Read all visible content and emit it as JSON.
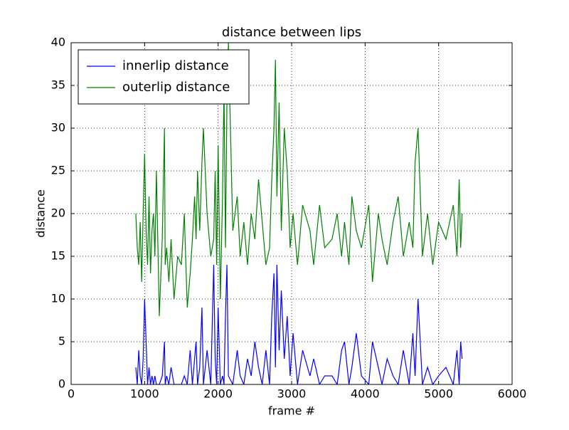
{
  "chart_data": {
    "type": "line",
    "title": "distance between lips",
    "xlabel": "frame #",
    "ylabel": "distance",
    "x": [
      880,
      900,
      920,
      940,
      960,
      980,
      1000,
      1020,
      1040,
      1060,
      1080,
      1100,
      1120,
      1140,
      1160,
      1200,
      1240,
      1270,
      1280,
      1300,
      1330,
      1360,
      1400,
      1450,
      1500,
      1540,
      1580,
      1620,
      1650,
      1680,
      1700,
      1720,
      1750,
      1780,
      1800,
      1850,
      1900,
      1940,
      1960,
      1980,
      2000,
      2030,
      2060,
      2080,
      2100,
      2120,
      2140,
      2200,
      2260,
      2300,
      2350,
      2400,
      2450,
      2500,
      2550,
      2600,
      2650,
      2700,
      2730,
      2760,
      2780,
      2800,
      2830,
      2860,
      2900,
      2940,
      2980,
      3020,
      3080,
      3150,
      3250,
      3300,
      3380,
      3450,
      3550,
      3620,
      3680,
      3720,
      3780,
      3820,
      3880,
      3950,
      4050,
      4100,
      4180,
      4230,
      4300,
      4380,
      4450,
      4520,
      4600,
      4650,
      4680,
      4720,
      4780,
      4850,
      4920,
      5000,
      5100,
      5200,
      5250,
      5280,
      5300,
      5320
    ],
    "series": [
      {
        "name": "innerlip distance",
        "color": "#0000ff",
        "values": [
          2,
          0,
          4,
          1,
          0,
          3,
          10,
          5,
          0,
          2,
          0,
          1,
          0,
          1,
          0,
          0,
          1,
          5,
          0,
          1,
          0,
          2,
          0,
          0,
          0,
          1,
          0,
          4,
          0,
          3,
          5,
          0,
          2,
          9,
          0,
          4,
          0,
          14,
          3,
          0,
          9,
          0,
          1,
          0,
          8,
          14,
          1,
          0,
          4,
          1,
          0,
          3,
          1,
          5,
          2,
          0,
          4,
          0,
          8,
          13,
          2,
          14,
          4,
          11,
          3,
          8,
          1,
          6,
          0,
          4,
          1,
          3,
          0,
          1,
          1,
          0,
          4,
          5,
          0,
          2,
          6,
          1,
          0,
          5,
          2,
          0,
          3,
          1,
          0,
          4,
          0,
          6,
          1,
          10,
          0,
          2,
          0,
          1,
          2,
          0,
          4,
          0,
          5,
          3
        ]
      },
      {
        "name": "outerlip distance",
        "color": "#008000",
        "values": [
          20,
          16,
          14,
          19,
          12,
          20,
          27,
          18,
          14,
          22,
          13,
          18,
          20,
          15,
          25,
          8,
          17,
          30,
          14,
          16,
          12,
          17,
          10,
          15,
          14,
          20,
          9,
          13,
          17,
          22,
          17,
          25,
          18,
          26,
          30,
          20,
          15,
          17,
          25,
          14,
          28,
          10,
          22,
          35,
          16,
          33,
          40,
          18,
          22,
          15,
          19,
          14,
          20,
          17,
          24,
          19,
          14,
          16,
          24,
          30,
          38,
          22,
          33,
          18,
          30,
          25,
          16,
          20,
          14,
          21,
          18,
          14,
          21,
          16,
          17,
          20,
          15,
          19,
          14,
          22,
          18,
          16,
          21,
          12,
          20,
          17,
          14,
          19,
          22,
          15,
          19,
          16,
          26,
          30,
          15,
          20,
          14,
          19,
          17,
          21,
          15,
          24,
          16,
          20
        ]
      }
    ],
    "xlim": [
      0,
      6000
    ],
    "xticks": [
      0,
      1000,
      2000,
      3000,
      4000,
      5000,
      6000
    ],
    "ylim": [
      0,
      40
    ],
    "yticks": [
      0,
      5,
      10,
      15,
      20,
      25,
      30,
      35,
      40
    ],
    "grid": true,
    "legend": "upper-left"
  }
}
